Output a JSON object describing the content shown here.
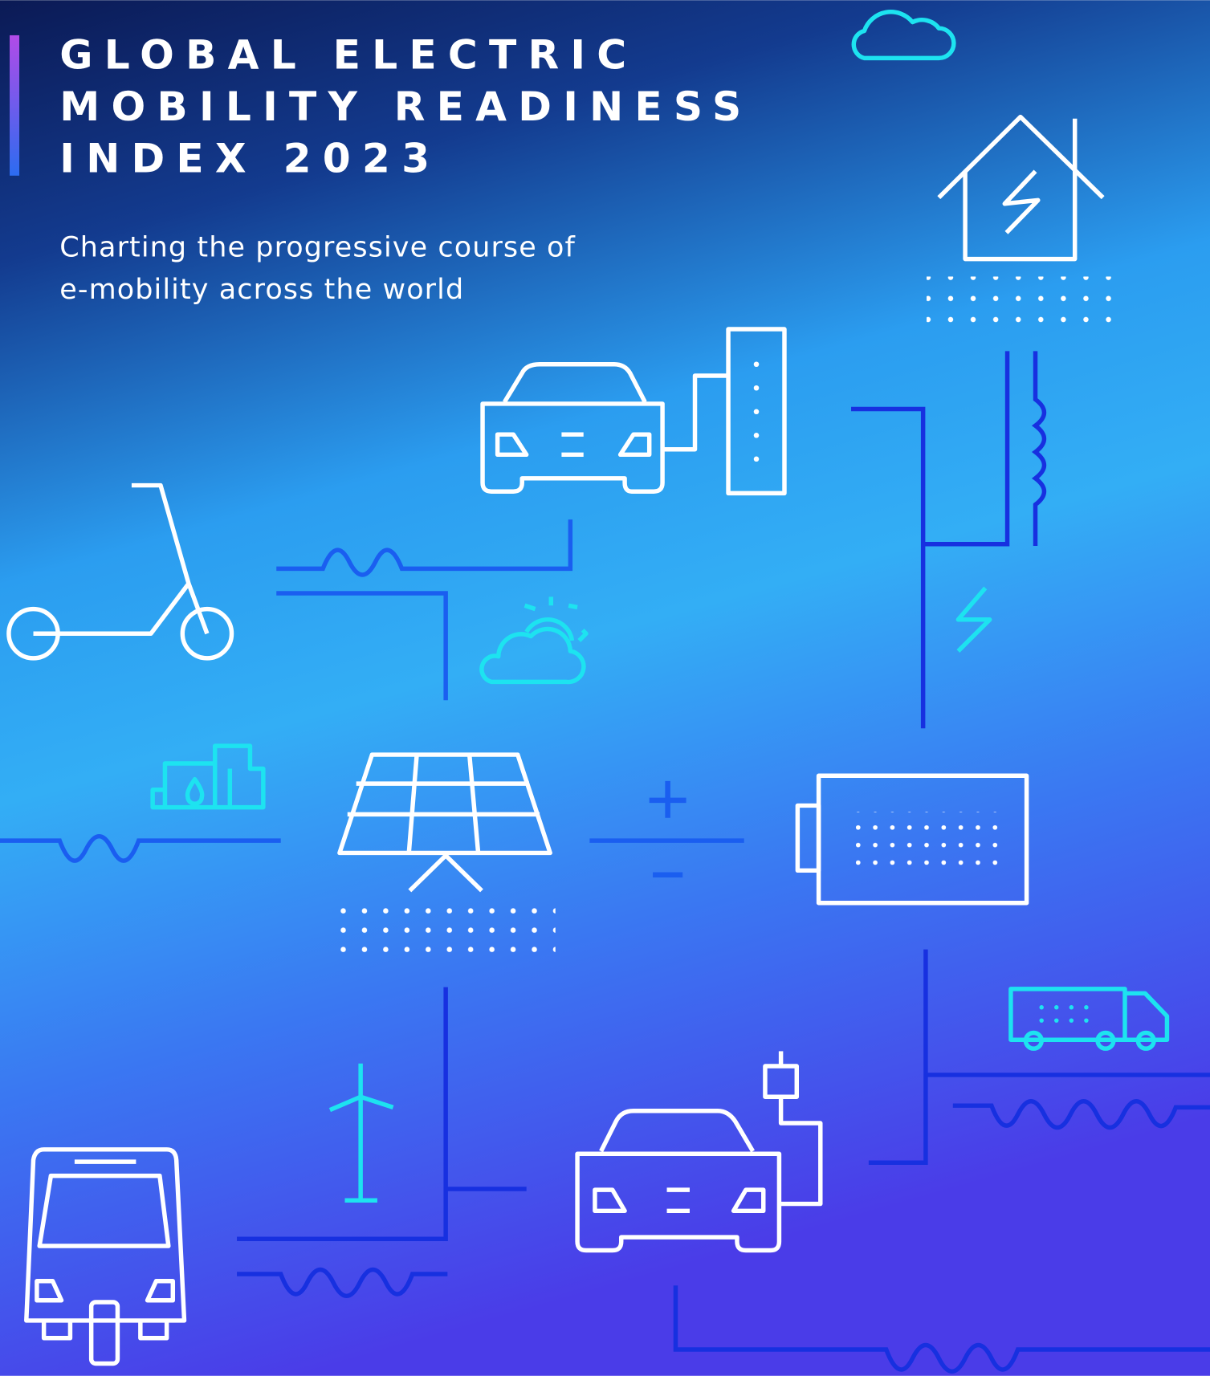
{
  "header": {
    "title": [
      "GLOBAL ELECTRIC",
      "MOBILITY READINESS",
      "INDEX 2023"
    ],
    "subtitle": [
      "Charting the progressive course of",
      "e-mobility across the world"
    ]
  }
}
